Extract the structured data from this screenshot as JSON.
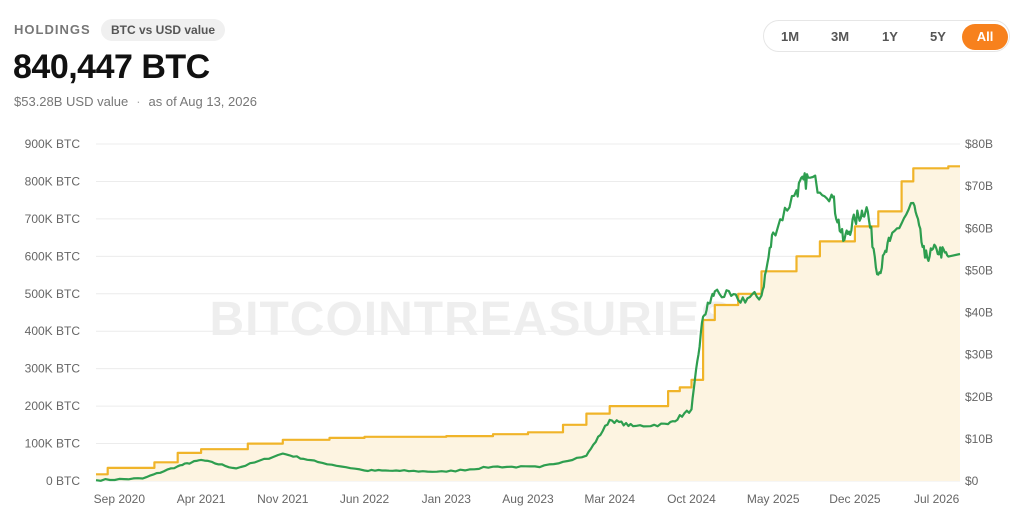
{
  "header": {
    "section_label": "HOLDINGS",
    "toggle_label": "BTC vs USD value",
    "btc_total": "840,447 BTC",
    "usd_value": "$53.28B USD value",
    "separator": "·",
    "as_of": "as of Aug 13, 2026"
  },
  "range": {
    "options": [
      "1M",
      "3M",
      "1Y",
      "5Y",
      "All"
    ],
    "selected": "All"
  },
  "watermark": "BITCOINTREASURIES.NET",
  "colors": {
    "btc_line": "#f0b429",
    "btc_fill": "#fdf4e1",
    "usd_line": "#2e9e4f",
    "accent": "#f7811d"
  },
  "chart_data": {
    "type": "line",
    "y_left": {
      "ticks": [
        "0 BTC",
        "100K BTC",
        "200K BTC",
        "300K BTC",
        "400K BTC",
        "500K BTC",
        "600K BTC",
        "700K BTC",
        "800K BTC",
        "900K BTC"
      ],
      "range": [
        0,
        900000
      ]
    },
    "y_right": {
      "ticks": [
        "$0",
        "$10B",
        "$20B",
        "$30B",
        "$40B",
        "$50B",
        "$60B",
        "$70B",
        "$80B"
      ],
      "range": [
        0,
        80
      ]
    },
    "x_ticks": [
      "Sep 2020",
      "Apr 2021",
      "Nov 2021",
      "Jun 2022",
      "Jan 2023",
      "Aug 2023",
      "Mar 2024",
      "Oct 2024",
      "May 2025",
      "Dec 2025",
      "Jul 2026"
    ],
    "grid": true,
    "series": [
      {
        "axis": "left",
        "points": [
          [
            "2020-07",
            18000
          ],
          [
            "2020-08",
            35000
          ],
          [
            "2020-12",
            50000
          ],
          [
            "2021-02",
            75000
          ],
          [
            "2021-04",
            85000
          ],
          [
            "2021-08",
            100000
          ],
          [
            "2021-11",
            110000
          ],
          [
            "2022-03",
            115000
          ],
          [
            "2022-06",
            118000
          ],
          [
            "2023-01",
            120000
          ],
          [
            "2023-05",
            125000
          ],
          [
            "2023-08",
            130000
          ],
          [
            "2023-11",
            150000
          ],
          [
            "2024-01",
            180000
          ],
          [
            "2024-03",
            200000
          ],
          [
            "2024-08",
            240000
          ],
          [
            "2024-09",
            250000
          ],
          [
            "2024-10",
            270000
          ],
          [
            "2024-11",
            430000
          ],
          [
            "2024-12",
            470000
          ],
          [
            "2025-02",
            500000
          ],
          [
            "2025-04",
            560000
          ],
          [
            "2025-07",
            600000
          ],
          [
            "2025-09",
            640000
          ],
          [
            "2025-12",
            680000
          ],
          [
            "2026-02",
            720000
          ],
          [
            "2026-04",
            800000
          ],
          [
            "2026-05",
            835000
          ],
          [
            "2026-08",
            840447
          ]
        ]
      },
      {
        "axis": "right",
        "points": [
          [
            "2020-07",
            0.2
          ],
          [
            "2020-11",
            0.6
          ],
          [
            "2021-02",
            3.5
          ],
          [
            "2021-04",
            5.0
          ],
          [
            "2021-07",
            3.0
          ],
          [
            "2021-11",
            6.5
          ],
          [
            "2022-02",
            4.5
          ],
          [
            "2022-06",
            2.5
          ],
          [
            "2022-09",
            2.4
          ],
          [
            "2023-01",
            2.2
          ],
          [
            "2023-05",
            3.4
          ],
          [
            "2023-09",
            3.3
          ],
          [
            "2024-01",
            6.0
          ],
          [
            "2024-03",
            14.5
          ],
          [
            "2024-05",
            13.0
          ],
          [
            "2024-08",
            13.5
          ],
          [
            "2024-10",
            17.0
          ],
          [
            "2024-11",
            39.0
          ],
          [
            "2024-12",
            45.0
          ],
          [
            "2025-02",
            43.0
          ],
          [
            "2025-04",
            44.0
          ],
          [
            "2025-05",
            59.0
          ],
          [
            "2025-07",
            69.0
          ],
          [
            "2025-08",
            72.0
          ],
          [
            "2025-10",
            68.0
          ],
          [
            "2025-11",
            57.0
          ],
          [
            "2025-12",
            62.0
          ],
          [
            "2026-01",
            65.0
          ],
          [
            "2026-02",
            49.0
          ],
          [
            "2026-03",
            57.0
          ],
          [
            "2026-05",
            66.0
          ],
          [
            "2026-06",
            53.0
          ],
          [
            "2026-07",
            55.0
          ],
          [
            "2026-08",
            53.28
          ]
        ]
      }
    ]
  }
}
